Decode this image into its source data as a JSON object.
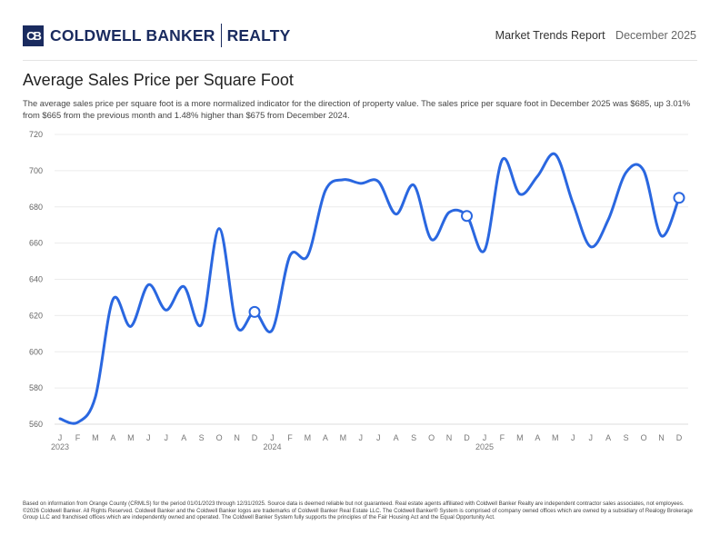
{
  "header": {
    "brand": "COLDWELL BANKER",
    "brand_sub": "REALTY",
    "logo_mark": "CB",
    "report_title": "Market Trends Report",
    "report_date": "December 2025"
  },
  "title": "Average Sales Price per Square Foot",
  "description": "The average sales price per square foot is a more normalized indicator for the direction of property value. The sales price per square foot in December 2025 was $685, up 3.01% from $665 from the previous month and 1.48% higher than $675 from December 2024.",
  "footer": "Based on information from Orange County (CRMLS) for the period 01/01/2023 through 12/31/2025. Source data is deemed reliable but not guaranteed. Real estate agents affiliated with Coldwell Banker Realty are independent contractor sales associates, not employees. ©2026 Coldwell Banker. All Rights Reserved. Coldwell Banker and the Coldwell Banker logos are trademarks of Coldwell Banker Real Estate LLC. The Coldwell Banker® System is comprised of company owned offices which are owned by a subsidiary of Realogy Brokerage Group LLC and franchised offices which are independently owned and operated. The Coldwell Banker System fully supports the principles of the Fair Housing Act and the Equal Opportunity Act.",
  "chart_data": {
    "type": "line",
    "title": "Average Sales Price per Square Foot",
    "ylim": [
      560,
      720
    ],
    "yticks": [
      560,
      580,
      600,
      620,
      640,
      660,
      680,
      700,
      720
    ],
    "grid": true,
    "line_color": "#2a67e0",
    "month_labels": [
      "J",
      "F",
      "M",
      "A",
      "M",
      "J",
      "J",
      "A",
      "S",
      "O",
      "N",
      "D",
      "J",
      "F",
      "M",
      "A",
      "M",
      "J",
      "J",
      "A",
      "S",
      "O",
      "N",
      "D",
      "J",
      "F",
      "M",
      "A",
      "M",
      "J",
      "J",
      "A",
      "S",
      "O",
      "N",
      "D"
    ],
    "year_labels": [
      {
        "index": 0,
        "label": "2023"
      },
      {
        "index": 12,
        "label": "2024"
      },
      {
        "index": 24,
        "label": "2025"
      }
    ],
    "highlighted_indices": [
      11,
      23,
      35
    ],
    "values": [
      563,
      561,
      575,
      629,
      614,
      637,
      623,
      636,
      615,
      668,
      614,
      622,
      612,
      653,
      653,
      689,
      695,
      693,
      694,
      676,
      692,
      662,
      677,
      675,
      656,
      706,
      687,
      697,
      709,
      682,
      658,
      673,
      699,
      700,
      664,
      685
    ]
  }
}
